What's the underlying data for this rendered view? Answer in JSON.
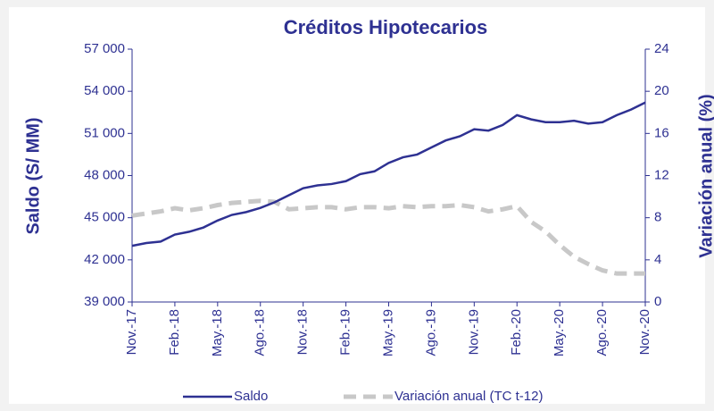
{
  "chart_data": {
    "type": "line",
    "title": "Créditos Hipotecarios",
    "y_label": "Saldo (S/ MM)",
    "y2_label": "Variación anual (%)",
    "categories": [
      "Nov.-17",
      null,
      null,
      "Feb.-18",
      null,
      null,
      "May.-18",
      null,
      null,
      "Ago.-18",
      null,
      null,
      "Nov.-18",
      null,
      null,
      "Feb.-19",
      null,
      null,
      "May.-19",
      null,
      null,
      "Ago.-19",
      null,
      null,
      "Nov.-19",
      null,
      null,
      "Feb.-20",
      null,
      null,
      "May.-20",
      null,
      null,
      "Ago.-20",
      null,
      null,
      "Nov.-20"
    ],
    "series": [
      {
        "name": "Saldo",
        "color": "#2e3192",
        "axis": "y",
        "dashed": false,
        "values": [
          43000,
          43200,
          43300,
          43800,
          44000,
          44300,
          44800,
          45200,
          45400,
          45700,
          46100,
          46600,
          47100,
          47300,
          47400,
          47600,
          48100,
          48300,
          48900,
          49300,
          49500,
          50000,
          50500,
          50800,
          51300,
          51200,
          51600,
          52300,
          52000,
          51800,
          51800,
          51900,
          51700,
          51800,
          52300,
          52700,
          53200
        ]
      },
      {
        "name": "Variación anual (TC t-12)",
        "color": "#c8c8c8",
        "axis": "y2",
        "dashed": true,
        "values": [
          8.2,
          8.4,
          8.6,
          8.9,
          8.7,
          8.9,
          9.2,
          9.4,
          9.5,
          9.6,
          9.5,
          8.8,
          8.9,
          9.0,
          9.0,
          8.8,
          9.0,
          9.0,
          8.9,
          9.1,
          9.0,
          9.1,
          9.1,
          9.2,
          9.0,
          8.6,
          8.8,
          9.1,
          7.6,
          6.7,
          5.4,
          4.3,
          3.6,
          3.0,
          2.7,
          2.7,
          2.7
        ]
      }
    ],
    "ylim": [
      39000,
      57000
    ],
    "yticks": [
      {
        "value": 39000,
        "label": "39 000"
      },
      {
        "value": 42000,
        "label": "42 000"
      },
      {
        "value": 45000,
        "label": "45 000"
      },
      {
        "value": 48000,
        "label": "48 000"
      },
      {
        "value": 51000,
        "label": "51 000"
      },
      {
        "value": 54000,
        "label": "54 000"
      },
      {
        "value": 57000,
        "label": "57 000"
      }
    ],
    "y2lim": [
      0,
      24
    ],
    "y2ticks": [
      0,
      4,
      8,
      12,
      16,
      20,
      24
    ]
  }
}
